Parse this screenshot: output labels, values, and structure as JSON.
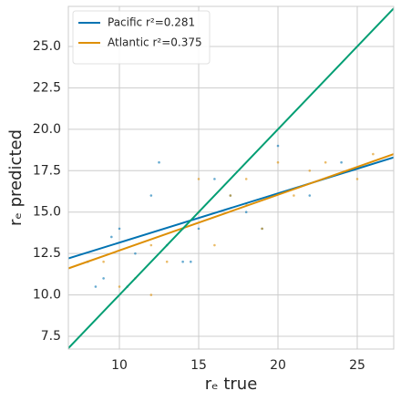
{
  "chart_data": {
    "type": "scatter",
    "xlabel": "rₑ true",
    "ylabel": "rₑ predicted",
    "xlim": [
      6.78,
      27.3
    ],
    "ylim": [
      6.73,
      27.42
    ],
    "xticks": [
      10,
      15,
      20,
      25
    ],
    "yticks": [
      7.5,
      {
        "value": 10,
        "label": "10.0"
      },
      12.5,
      {
        "value": 15,
        "label": "15.0"
      },
      17.5,
      {
        "value": 20,
        "label": "20.0"
      },
      22.5,
      {
        "value": 25,
        "label": "25.0"
      }
    ],
    "grid": true,
    "legend": "upper left",
    "points": [
      {
        "color": "#0173b2",
        "x": [
          8,
          9,
          10,
          11,
          12,
          13,
          14,
          15,
          16,
          18,
          20,
          22,
          8.5,
          10.5,
          12.5,
          14.5,
          17,
          19,
          24,
          9.5
        ],
        "values": [
          12,
          11,
          14,
          12.5,
          16,
          13,
          12,
          14,
          17,
          15,
          19,
          16,
          10.5,
          10.5,
          18,
          12,
          16,
          14,
          18,
          13.5
        ]
      },
      {
        "color": "#de8f05",
        "x": [
          9,
          10,
          11,
          12,
          13,
          14,
          15,
          16,
          17,
          18,
          19,
          20,
          21,
          22,
          23,
          25,
          12,
          15,
          18,
          26
        ],
        "values": [
          12,
          10.5,
          11,
          13,
          12,
          14,
          15,
          13,
          16,
          17,
          14,
          18,
          16,
          17.5,
          18,
          17,
          10,
          17,
          15.5,
          18.5
        ]
      }
    ],
    "series": [
      {
        "name": "Pacific r²=0.281",
        "color": "#0173b2",
        "x": [
          6.78,
          27.3
        ],
        "values": [
          12.2,
          18.3
        ]
      },
      {
        "name": "Atlantic r²=0.375",
        "color": "#de8f05",
        "x": [
          6.78,
          27.3
        ],
        "values": [
          11.6,
          18.5
        ]
      },
      {
        "color": "#029e73",
        "x": [
          6.78,
          27.3
        ],
        "values": [
          6.78,
          27.3
        ]
      }
    ]
  }
}
